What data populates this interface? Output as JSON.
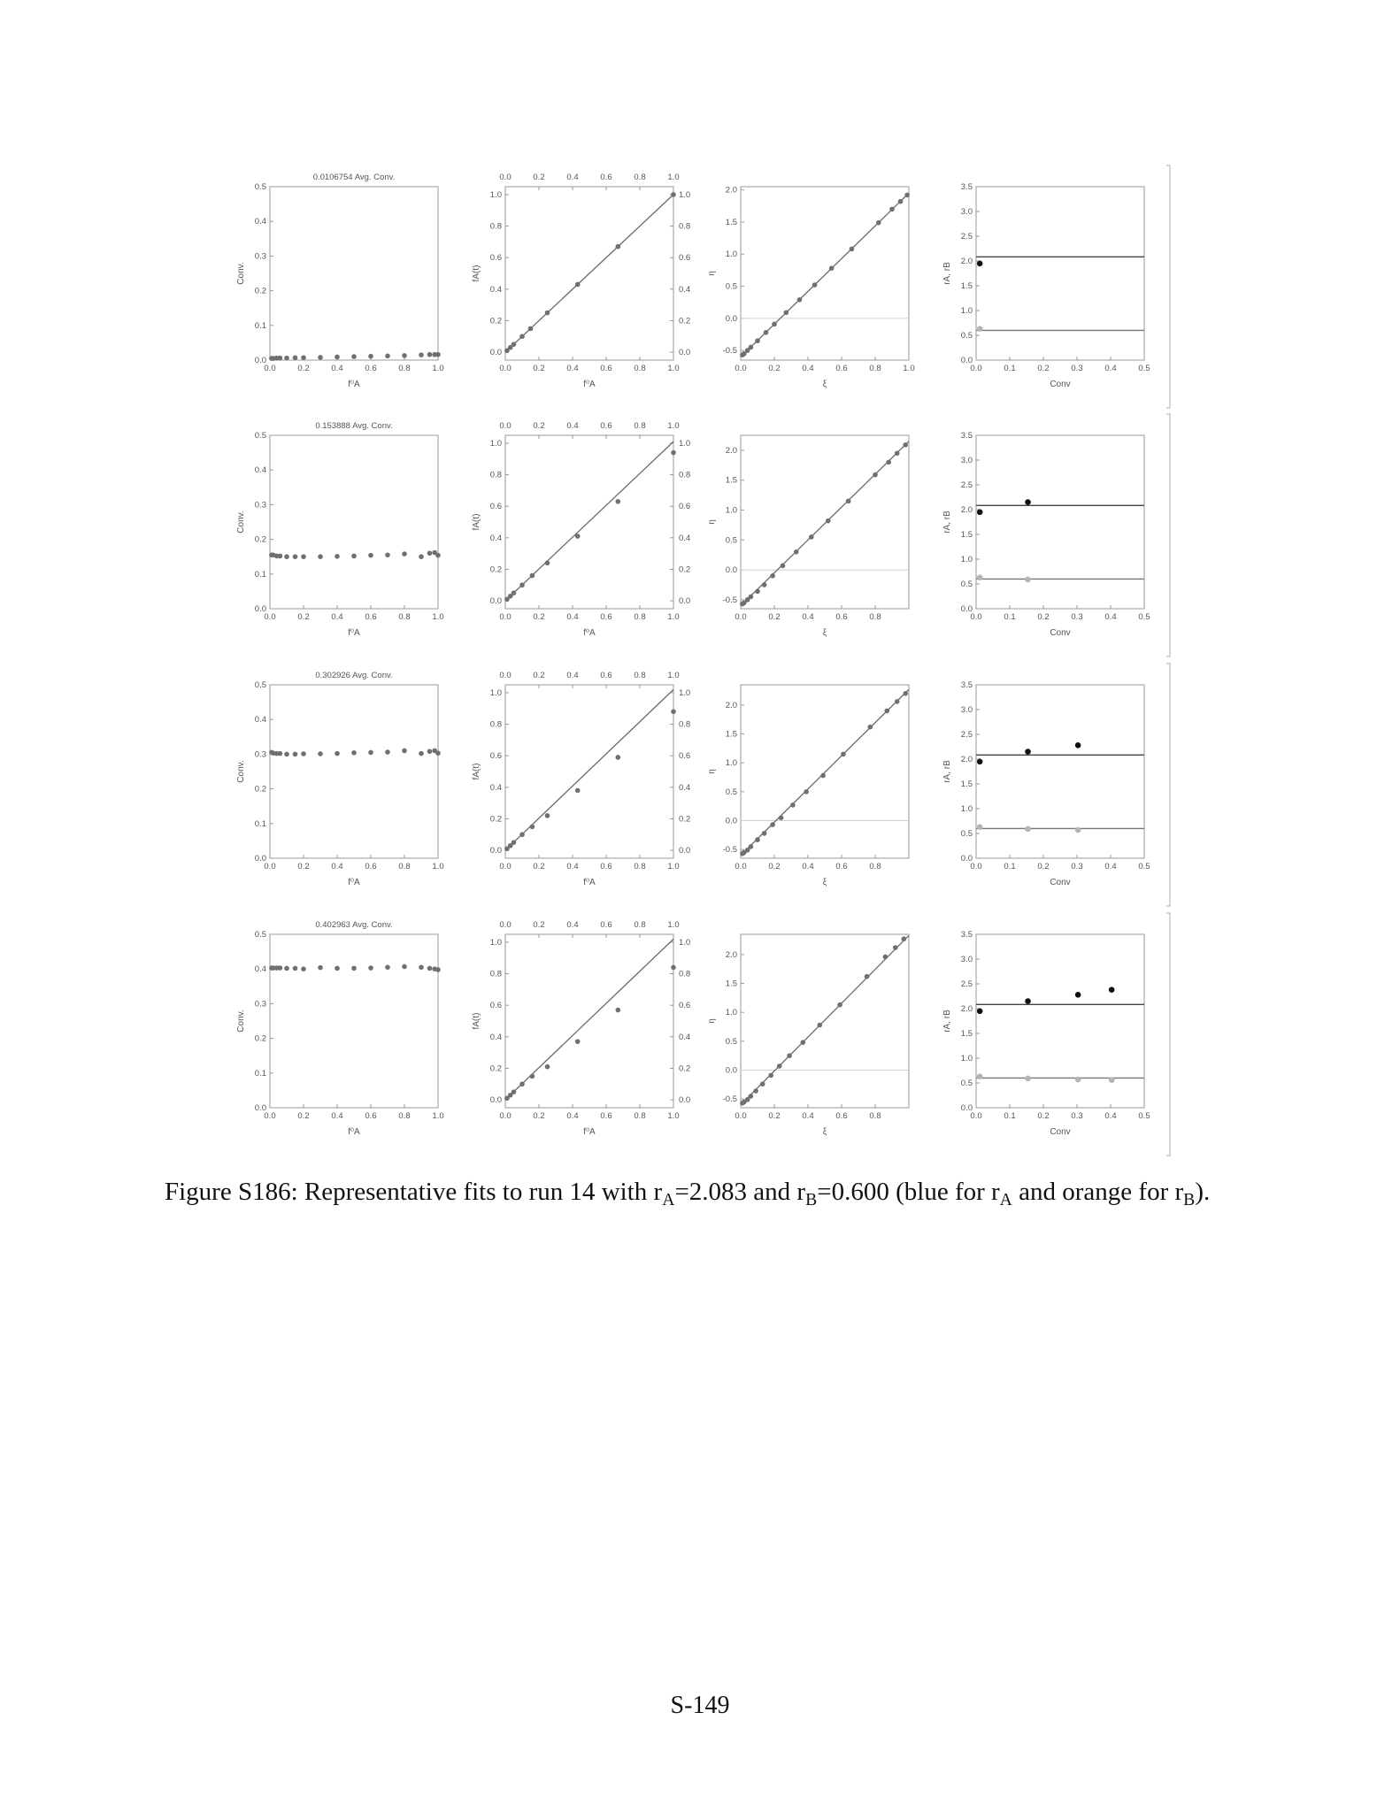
{
  "figure_label": "Figure S186:",
  "caption": {
    "label": "Figure S186:",
    "t1": "Representative fits to run 14 with r",
    "s1": "A",
    "t2": "=2.083 and r",
    "s2": "B",
    "t3": "=0.600 (blue for r",
    "s3": "A",
    "t4": " and orange for r",
    "s4": "B",
    "t5": ")."
  },
  "page_number": "S-149",
  "colors": {
    "frame": "#9a9a9a",
    "point": "#6f6f6f",
    "line": "#6a6a6a",
    "rA": "#111111",
    "rB": "#b5b5b5",
    "zero_line": "#d0d0d0",
    "text": "#555555"
  },
  "chart_data": [
    {
      "type": "scatter",
      "row": 0,
      "col": 0,
      "title": "0.0106754 Avg. Conv.",
      "xlabel": "f⁰A",
      "ylabel": "Conv.",
      "xlim": [
        0,
        1
      ],
      "ylim": [
        0,
        0.5
      ],
      "xticks": [
        "0.0",
        "0.2",
        "0.4",
        "0.6",
        "0.8",
        "1.0"
      ],
      "yticks": [
        "0.0",
        "0.1",
        "0.2",
        "0.3",
        "0.4",
        "0.5"
      ],
      "x": [
        0.01,
        0.02,
        0.04,
        0.06,
        0.1,
        0.15,
        0.2,
        0.3,
        0.4,
        0.5,
        0.6,
        0.7,
        0.8,
        0.9,
        0.95,
        0.98,
        1.0
      ],
      "y": [
        0.005,
        0.005,
        0.006,
        0.006,
        0.006,
        0.007,
        0.007,
        0.008,
        0.009,
        0.01,
        0.011,
        0.012,
        0.013,
        0.015,
        0.016,
        0.016,
        0.016
      ]
    },
    {
      "type": "scatter+line",
      "row": 0,
      "col": 1,
      "xlabel": "f⁰A",
      "ylabel": "fA(t)",
      "xlim": [
        0,
        1
      ],
      "ylim": [
        -0.05,
        1.05
      ],
      "xticks": [
        "0.0",
        "0.2",
        "0.4",
        "0.6",
        "0.8",
        "1.0"
      ],
      "yticks": [
        "0.0",
        "0.2",
        "0.4",
        "0.6",
        "0.8",
        "1.0"
      ],
      "line": [
        [
          0,
          0
        ],
        [
          1,
          1
        ]
      ],
      "x": [
        0.01,
        0.03,
        0.05,
        0.1,
        0.15,
        0.25,
        0.43,
        0.67,
        1.0
      ],
      "y": [
        0.01,
        0.03,
        0.05,
        0.1,
        0.15,
        0.25,
        0.43,
        0.67,
        1.0
      ]
    },
    {
      "type": "scatter+line",
      "row": 0,
      "col": 2,
      "xlabel": "ξ",
      "ylabel": "η",
      "xlim": [
        0,
        1
      ],
      "ylim": [
        -0.65,
        2.05
      ],
      "xticks": [
        "0.0",
        "0.2",
        "0.4",
        "0.6",
        "0.8",
        "1.0"
      ],
      "yticks": [
        "-0.5",
        "0.0",
        "0.5",
        "1.0",
        "1.5",
        "2.0"
      ],
      "line": [
        [
          0,
          -0.6
        ],
        [
          1,
          1.95
        ]
      ],
      "x": [
        0.01,
        0.02,
        0.04,
        0.06,
        0.1,
        0.15,
        0.2,
        0.27,
        0.35,
        0.44,
        0.54,
        0.66,
        0.82,
        0.9,
        0.95,
        0.99
      ],
      "y": [
        -0.57,
        -0.55,
        -0.5,
        -0.45,
        -0.35,
        -0.22,
        -0.09,
        0.09,
        0.29,
        0.52,
        0.78,
        1.08,
        1.49,
        1.7,
        1.82,
        1.92
      ]
    },
    {
      "type": "scatter+hlines",
      "row": 0,
      "col": 3,
      "xlabel": "Conv",
      "ylabel": "rA, rB",
      "xlim": [
        0,
        0.5
      ],
      "ylim": [
        0,
        3.5
      ],
      "xticks": [
        "0.0",
        "0.1",
        "0.2",
        "0.3",
        "0.4",
        "0.5"
      ],
      "yticks": [
        "0.0",
        "0.5",
        "1.0",
        "1.5",
        "2.0",
        "2.5",
        "3.0",
        "3.5"
      ],
      "hlines": {
        "rA": 2.083,
        "rB": 0.6
      },
      "series": [
        {
          "name": "rA",
          "x": [
            0.011
          ],
          "y": [
            1.95
          ]
        },
        {
          "name": "rB",
          "x": [
            0.011
          ],
          "y": [
            0.63
          ]
        }
      ]
    },
    {
      "type": "scatter",
      "row": 1,
      "col": 0,
      "title": "0.153888 Avg. Conv.",
      "xlabel": "f⁰A",
      "ylabel": "Conv.",
      "xlim": [
        0,
        1
      ],
      "ylim": [
        0,
        0.5
      ],
      "xticks": [
        "0.0",
        "0.2",
        "0.4",
        "0.6",
        "0.8",
        "1.0"
      ],
      "yticks": [
        "0.0",
        "0.1",
        "0.2",
        "0.3",
        "0.4",
        "0.5"
      ],
      "x": [
        0.01,
        0.02,
        0.04,
        0.06,
        0.1,
        0.15,
        0.2,
        0.3,
        0.4,
        0.5,
        0.6,
        0.7,
        0.8,
        0.9,
        0.95,
        0.98,
        1.0
      ],
      "y": [
        0.155,
        0.155,
        0.152,
        0.152,
        0.15,
        0.15,
        0.15,
        0.15,
        0.151,
        0.152,
        0.154,
        0.155,
        0.158,
        0.15,
        0.16,
        0.162,
        0.154
      ]
    },
    {
      "type": "scatter+line",
      "row": 1,
      "col": 1,
      "xlabel": "f⁰A",
      "ylabel": "fA(t)",
      "xlim": [
        0,
        1
      ],
      "ylim": [
        -0.05,
        1.05
      ],
      "xticks": [
        "0.0",
        "0.2",
        "0.4",
        "0.6",
        "0.8",
        "1.0"
      ],
      "yticks": [
        "0.0",
        "0.2",
        "0.4",
        "0.6",
        "0.8",
        "1.0"
      ],
      "line": [
        [
          0,
          0
        ],
        [
          1,
          1.01
        ]
      ],
      "x": [
        0.01,
        0.03,
        0.05,
        0.1,
        0.16,
        0.25,
        0.43,
        0.67,
        1.0
      ],
      "y": [
        0.01,
        0.03,
        0.05,
        0.1,
        0.16,
        0.24,
        0.41,
        0.63,
        0.94
      ]
    },
    {
      "type": "scatter+line",
      "row": 1,
      "col": 2,
      "xlabel": "ξ",
      "ylabel": "η",
      "xlim": [
        0,
        1
      ],
      "ylim": [
        -0.65,
        2.25
      ],
      "xticks": [
        "0.0",
        "0.2",
        "0.4",
        "0.6",
        "0.8"
      ],
      "yticks": [
        "-0.5",
        "0.0",
        "0.5",
        "1.0",
        "1.5",
        "2.0"
      ],
      "line": [
        [
          0,
          -0.6
        ],
        [
          1,
          2.15
        ]
      ],
      "x": [
        0.01,
        0.02,
        0.04,
        0.06,
        0.1,
        0.14,
        0.19,
        0.25,
        0.33,
        0.42,
        0.52,
        0.64,
        0.8,
        0.88,
        0.93,
        0.98
      ],
      "y": [
        -0.57,
        -0.55,
        -0.5,
        -0.45,
        -0.36,
        -0.25,
        -0.1,
        0.07,
        0.3,
        0.55,
        0.82,
        1.15,
        1.59,
        1.8,
        1.95,
        2.09
      ]
    },
    {
      "type": "scatter+hlines",
      "row": 1,
      "col": 3,
      "xlabel": "Conv",
      "ylabel": "rA, rB",
      "xlim": [
        0,
        0.5
      ],
      "ylim": [
        0,
        3.5
      ],
      "xticks": [
        "0.0",
        "0.1",
        "0.2",
        "0.3",
        "0.4",
        "0.5"
      ],
      "yticks": [
        "0.0",
        "0.5",
        "1.0",
        "1.5",
        "2.0",
        "2.5",
        "3.0",
        "3.5"
      ],
      "hlines": {
        "rA": 2.083,
        "rB": 0.6
      },
      "series": [
        {
          "name": "rA",
          "x": [
            0.011,
            0.154
          ],
          "y": [
            1.95,
            2.15
          ]
        },
        {
          "name": "rB",
          "x": [
            0.011,
            0.154
          ],
          "y": [
            0.63,
            0.59
          ]
        }
      ]
    },
    {
      "type": "scatter",
      "row": 2,
      "col": 0,
      "title": "0.302926 Avg. Conv.",
      "xlabel": "f⁰A",
      "ylabel": "Conv.",
      "xlim": [
        0,
        1
      ],
      "ylim": [
        0,
        0.5
      ],
      "xticks": [
        "0.0",
        "0.2",
        "0.4",
        "0.6",
        "0.8",
        "1.0"
      ],
      "yticks": [
        "0.0",
        "0.1",
        "0.2",
        "0.3",
        "0.4",
        "0.5"
      ],
      "x": [
        0.01,
        0.02,
        0.04,
        0.06,
        0.1,
        0.15,
        0.2,
        0.3,
        0.4,
        0.5,
        0.6,
        0.7,
        0.8,
        0.9,
        0.95,
        0.98,
        1.0
      ],
      "y": [
        0.305,
        0.303,
        0.302,
        0.302,
        0.3,
        0.3,
        0.301,
        0.301,
        0.302,
        0.304,
        0.305,
        0.306,
        0.31,
        0.302,
        0.308,
        0.31,
        0.303
      ]
    },
    {
      "type": "scatter+line",
      "row": 2,
      "col": 1,
      "xlabel": "f⁰A",
      "ylabel": "fA(t)",
      "xlim": [
        0,
        1
      ],
      "ylim": [
        -0.05,
        1.05
      ],
      "xticks": [
        "0.0",
        "0.2",
        "0.4",
        "0.6",
        "0.8",
        "1.0"
      ],
      "yticks": [
        "0.0",
        "0.2",
        "0.4",
        "0.6",
        "0.8",
        "1.0"
      ],
      "line": [
        [
          0,
          0
        ],
        [
          1,
          1.02
        ]
      ],
      "x": [
        0.01,
        0.03,
        0.05,
        0.1,
        0.16,
        0.25,
        0.43,
        0.67,
        1.0
      ],
      "y": [
        0.01,
        0.03,
        0.05,
        0.1,
        0.15,
        0.22,
        0.38,
        0.59,
        0.88
      ]
    },
    {
      "type": "scatter+line",
      "row": 2,
      "col": 2,
      "xlabel": "ξ",
      "ylabel": "η",
      "xlim": [
        0,
        1
      ],
      "ylim": [
        -0.65,
        2.35
      ],
      "xticks": [
        "0.0",
        "0.2",
        "0.4",
        "0.6",
        "0.8"
      ],
      "yticks": [
        "-0.5",
        "0.0",
        "0.5",
        "1.0",
        "1.5",
        "2.0"
      ],
      "line": [
        [
          0,
          -0.6
        ],
        [
          1,
          2.27
        ]
      ],
      "x": [
        0.01,
        0.02,
        0.04,
        0.06,
        0.1,
        0.14,
        0.19,
        0.24,
        0.31,
        0.39,
        0.49,
        0.61,
        0.77,
        0.87,
        0.93,
        0.98
      ],
      "y": [
        -0.57,
        -0.55,
        -0.51,
        -0.45,
        -0.33,
        -0.22,
        -0.07,
        0.05,
        0.27,
        0.5,
        0.78,
        1.15,
        1.62,
        1.9,
        2.06,
        2.2
      ]
    },
    {
      "type": "scatter+hlines",
      "row": 2,
      "col": 3,
      "xlabel": "Conv",
      "ylabel": "rA, rB",
      "xlim": [
        0,
        0.5
      ],
      "ylim": [
        0,
        3.5
      ],
      "xticks": [
        "0.0",
        "0.1",
        "0.2",
        "0.3",
        "0.4",
        "0.5"
      ],
      "yticks": [
        "0.0",
        "0.5",
        "1.0",
        "1.5",
        "2.0",
        "2.5",
        "3.0",
        "3.5"
      ],
      "hlines": {
        "rA": 2.083,
        "rB": 0.6
      },
      "series": [
        {
          "name": "rA",
          "x": [
            0.011,
            0.154,
            0.303
          ],
          "y": [
            1.95,
            2.15,
            2.28
          ]
        },
        {
          "name": "rB",
          "x": [
            0.011,
            0.154,
            0.303
          ],
          "y": [
            0.63,
            0.59,
            0.57
          ]
        }
      ]
    },
    {
      "type": "scatter",
      "row": 3,
      "col": 0,
      "title": "0.402963 Avg. Conv.",
      "xlabel": "f⁰A",
      "ylabel": "Conv.",
      "xlim": [
        0,
        1
      ],
      "ylim": [
        0,
        0.5
      ],
      "xticks": [
        "0.0",
        "0.2",
        "0.4",
        "0.6",
        "0.8",
        "1.0"
      ],
      "yticks": [
        "0.0",
        "0.1",
        "0.2",
        "0.3",
        "0.4",
        "0.5"
      ],
      "x": [
        0.01,
        0.02,
        0.04,
        0.06,
        0.1,
        0.15,
        0.2,
        0.3,
        0.4,
        0.5,
        0.6,
        0.7,
        0.8,
        0.9,
        0.95,
        0.98,
        1.0
      ],
      "y": [
        0.403,
        0.403,
        0.403,
        0.403,
        0.402,
        0.402,
        0.4,
        0.404,
        0.402,
        0.402,
        0.403,
        0.405,
        0.407,
        0.405,
        0.402,
        0.4,
        0.398
      ]
    },
    {
      "type": "scatter+line",
      "row": 3,
      "col": 1,
      "xlabel": "f⁰A",
      "ylabel": "fA(t)",
      "xlim": [
        0,
        1
      ],
      "ylim": [
        -0.05,
        1.05
      ],
      "xticks": [
        "0.0",
        "0.2",
        "0.4",
        "0.6",
        "0.8",
        "1.0"
      ],
      "yticks": [
        "0.0",
        "0.2",
        "0.4",
        "0.6",
        "0.8",
        "1.0"
      ],
      "line": [
        [
          0,
          0
        ],
        [
          1,
          1.02
        ]
      ],
      "x": [
        0.01,
        0.03,
        0.05,
        0.1,
        0.16,
        0.25,
        0.43,
        0.67,
        1.0
      ],
      "y": [
        0.01,
        0.03,
        0.05,
        0.1,
        0.15,
        0.21,
        0.37,
        0.57,
        0.84
      ]
    },
    {
      "type": "scatter+line",
      "row": 3,
      "col": 2,
      "xlabel": "ξ",
      "ylabel": "η",
      "xlim": [
        0,
        1
      ],
      "ylim": [
        -0.65,
        2.35
      ],
      "xticks": [
        "0.0",
        "0.2",
        "0.4",
        "0.6",
        "0.8"
      ],
      "yticks": [
        "-0.5",
        "0.0",
        "0.5",
        "1.0",
        "1.5",
        "2.0"
      ],
      "line": [
        [
          0,
          -0.6
        ],
        [
          1,
          2.33
        ]
      ],
      "x": [
        0.01,
        0.02,
        0.04,
        0.06,
        0.09,
        0.13,
        0.18,
        0.23,
        0.29,
        0.37,
        0.47,
        0.59,
        0.75,
        0.86,
        0.92,
        0.97
      ],
      "y": [
        -0.57,
        -0.55,
        -0.51,
        -0.45,
        -0.36,
        -0.24,
        -0.09,
        0.07,
        0.25,
        0.48,
        0.78,
        1.13,
        1.62,
        1.96,
        2.12,
        2.27
      ]
    },
    {
      "type": "scatter+hlines",
      "row": 3,
      "col": 3,
      "xlabel": "Conv",
      "ylabel": "rA, rB",
      "xlim": [
        0,
        0.5
      ],
      "ylim": [
        0,
        3.5
      ],
      "xticks": [
        "0.0",
        "0.1",
        "0.2",
        "0.3",
        "0.4",
        "0.5"
      ],
      "yticks": [
        "0.0",
        "0.5",
        "1.0",
        "1.5",
        "2.0",
        "2.5",
        "3.0",
        "3.5"
      ],
      "hlines": {
        "rA": 2.083,
        "rB": 0.6
      },
      "series": [
        {
          "name": "rA",
          "x": [
            0.011,
            0.154,
            0.303,
            0.403
          ],
          "y": [
            1.95,
            2.15,
            2.28,
            2.38
          ]
        },
        {
          "name": "rB",
          "x": [
            0.011,
            0.154,
            0.303,
            0.403
          ],
          "y": [
            0.63,
            0.59,
            0.57,
            0.56
          ]
        }
      ]
    }
  ]
}
